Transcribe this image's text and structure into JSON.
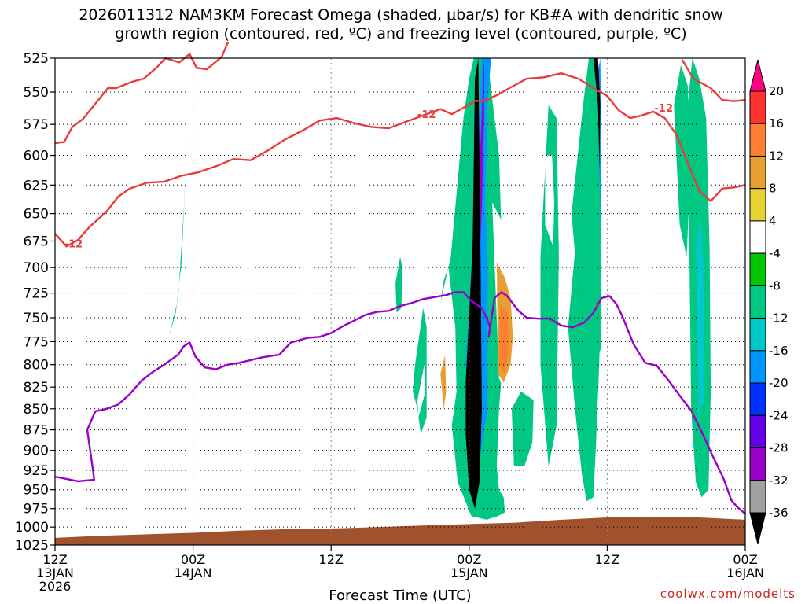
{
  "chart_data": {
    "type": "heatmap",
    "title_line1": "2026011312 NAM3KM Forecast Omega (shaded, μbar/s) for KB#A with dendritic snow",
    "title_line2": "growth region (contoured, red, ºC) and freezing level (contoured, purple, ºC)",
    "xlabel": "Forecast Time (UTC)",
    "credit": "coolwx.com/modelts",
    "y_axis": {
      "ylim": [
        1025,
        525
      ],
      "ticks": [
        "525",
        "550",
        "575",
        "600",
        "625",
        "650",
        "675",
        "700",
        "725",
        "750",
        "775",
        "800",
        "825",
        "850",
        "875",
        "900",
        "925",
        "950",
        "975",
        "1000",
        "1025"
      ],
      "grid": "dotted"
    },
    "x_axis": {
      "xlim": [
        "2026-01-13T12Z",
        "2026-01-16T00Z"
      ],
      "ticks": [
        {
          "x": 0,
          "l1": "12Z",
          "l2": "13JAN",
          "l3": "2026"
        },
        {
          "x": 12,
          "l1": "00Z",
          "l2": "14JAN",
          "l3": ""
        },
        {
          "x": 24,
          "l1": "12Z",
          "l2": "",
          "l3": ""
        },
        {
          "x": 36,
          "l1": "00Z",
          "l2": "15JAN",
          "l3": ""
        },
        {
          "x": 48,
          "l1": "12Z",
          "l2": "",
          "l3": ""
        },
        {
          "x": 60,
          "l1": "00Z",
          "l2": "16JAN",
          "l3": ""
        }
      ]
    },
    "colorbar": {
      "labels": [
        "20",
        "16",
        "12",
        "8",
        "4",
        "-4",
        "-8",
        "-12",
        "-16",
        "-20",
        "-24",
        "-28",
        "-32",
        "-36"
      ],
      "colors": [
        "#ff0080",
        "#ff3232",
        "#ff7f32",
        "#e6a032",
        "#e6d232",
        "#ffffff",
        "#00c800",
        "#00c882",
        "#00c8c8",
        "#0096ff",
        "#0032ff",
        "#6400e6",
        "#9600c8",
        "#a0a0a0",
        "#000000"
      ]
    },
    "contour_labels": [
      {
        "text": "-12",
        "x": 0.8,
        "p": 681
      },
      {
        "text": "-12",
        "x": 31.5,
        "p": 570
      },
      {
        "text": "-12",
        "x": 52.1,
        "p": 565
      }
    ],
    "series": [
      {
        "color": "#e83c3c",
        "x": [
          0,
          0.8,
          1.5,
          2.4,
          3.4,
          4.6,
          5.3,
          6.8,
          7.7,
          8.8,
          9.6,
          10.8,
          11.7,
          12.3,
          13.2,
          14.5,
          15,
          15.1
        ],
        "p": [
          590,
          589,
          577,
          571,
          560,
          547,
          547,
          542,
          540,
          532,
          525,
          528,
          522,
          532,
          533,
          524,
          514,
          514
        ]
      },
      {
        "color": "#e83c3c",
        "x": [
          0,
          1,
          2,
          3,
          4.5,
          5.5,
          6.5,
          8,
          9.5,
          11,
          12.5,
          14,
          15.5,
          17,
          18.5,
          20,
          21.5,
          23,
          24.5,
          26,
          27.5,
          29,
          30.5,
          32,
          33.5,
          34.5,
          35.5,
          36.5,
          37.5,
          38.5,
          39.5,
          41,
          42.5,
          44,
          45.5,
          47,
          48,
          49,
          50,
          51,
          52,
          53,
          54,
          55,
          56,
          57,
          58,
          59,
          60
        ],
        "p": [
          668,
          680,
          674,
          662,
          648,
          635,
          628,
          623,
          622,
          617,
          614,
          609,
          603,
          604,
          596,
          587,
          580,
          572,
          570,
          574,
          577,
          578,
          573,
          568,
          563,
          567,
          562,
          557,
          556,
          552,
          547,
          540,
          539,
          536,
          540,
          548,
          553,
          564,
          570,
          568,
          565,
          570,
          583,
          606,
          630,
          639,
          628,
          627,
          625
        ]
      },
      {
        "color": "#e83c3c",
        "x": [
          54.5,
          55.5,
          57,
          58,
          59,
          60
        ],
        "p": [
          526,
          540,
          547,
          556,
          557,
          556
        ]
      },
      {
        "color": "#9b00c8",
        "x": [
          0,
          2,
          3.4,
          3.3,
          2.8,
          3.5,
          4.5,
          5.5,
          6.5,
          7.5,
          8.5,
          9.5,
          10.7,
          11.2,
          11.7,
          12.2,
          13,
          14,
          15,
          16,
          17,
          18,
          19,
          19.5,
          20.5,
          22,
          23,
          24,
          25,
          26,
          27,
          28,
          29,
          30,
          31,
          32,
          33,
          34,
          34.8,
          35.5,
          36.2,
          37.1,
          37.6,
          37.8,
          37.7,
          38.2,
          38.8,
          39.3,
          40.3,
          41,
          42,
          43,
          44,
          45,
          46,
          46.8,
          47.5,
          48.2,
          48.8,
          49.3,
          50.3,
          51.3,
          52.3,
          53.3,
          54.2,
          55.3,
          56.2,
          57.1,
          58.1,
          58.8,
          59.3,
          60
        ],
        "p": [
          933,
          939,
          937,
          925,
          875,
          853,
          850,
          845,
          833,
          818,
          808,
          800,
          789,
          780,
          776,
          791,
          803,
          805,
          800,
          798,
          795,
          792,
          790,
          789,
          776,
          771,
          770,
          766,
          759,
          753,
          747,
          744,
          743,
          738,
          735,
          731,
          729,
          727,
          724,
          724,
          733,
          740,
          752,
          760,
          770,
          730,
          724,
          728,
          743,
          750,
          751,
          751,
          758,
          760,
          755,
          745,
          730,
          728,
          736,
          748,
          778,
          798,
          801,
          817,
          833,
          852,
          877,
          905,
          935,
          964,
          973,
          982
        ]
      }
    ],
    "omega_regions": [
      {
        "level": "-8",
        "x": [
          9.9,
          10.5,
          11,
          11.5,
          11.2,
          10.7,
          10.1
        ],
        "p": [
          770,
          745,
          695,
          582,
          645,
          730,
          760
        ]
      },
      {
        "level": "4",
        "x": [
          0.7,
          0.9,
          1.2,
          0.9
        ],
        "p": [
          540,
          525,
          525,
          545
        ]
      },
      {
        "level": "-8",
        "x": [
          33.5,
          34.4,
          35.5,
          36,
          36.4,
          36.9,
          37.6,
          37.8,
          38.2,
          38.6,
          38.9,
          39,
          38.9,
          38.6,
          38.4,
          38.6,
          39,
          39.1,
          38.5,
          37.5,
          36.2,
          35,
          34.5,
          34.9,
          34.8,
          34.2,
          33.8
        ],
        "p": [
          735,
          690,
          570,
          540,
          525,
          525,
          525,
          540,
          570,
          600,
          700,
          760,
          800,
          850,
          920,
          950,
          960,
          980,
          985,
          990,
          985,
          940,
          870,
          830,
          760,
          700,
          712
        ]
      },
      {
        "level": "-16",
        "x": [
          35.7,
          36.5,
          37.1,
          37.9,
          37.6,
          37.4,
          37.6,
          37.6,
          36.5,
          35.8,
          35.9
        ],
        "p": [
          800,
          640,
          525,
          525,
          560,
          640,
          700,
          850,
          950,
          900,
          850
        ]
      },
      {
        "level": "-28",
        "x": [
          36,
          36.6,
          37.3,
          37.3,
          37.1,
          36.9,
          37,
          36.3
        ],
        "p": [
          800,
          680,
          525,
          570,
          645,
          700,
          850,
          900
        ]
      },
      {
        "level": "-36",
        "x": [
          35.7,
          36.3,
          36.5,
          36.8,
          37,
          37.1,
          36.9,
          36.5,
          36,
          35.7
        ],
        "p": [
          820,
          680,
          540,
          525,
          700,
          850,
          940,
          975,
          950,
          880
        ]
      },
      {
        "level": "4",
        "x": [
          38,
          39,
          39.8,
          40.2,
          40.6,
          40.5,
          40.1,
          39.4,
          38.6
        ],
        "p": [
          640,
          660,
          660,
          700,
          750,
          800,
          830,
          840,
          815
        ]
      },
      {
        "level": "12",
        "x": [
          38.4,
          39.1,
          39.6,
          39.8,
          39.6,
          39,
          38.5
        ],
        "p": [
          695,
          710,
          730,
          770,
          800,
          820,
          810
        ]
      },
      {
        "level": "16",
        "x": [
          38.7,
          39.3,
          39.5,
          39.1,
          38.6
        ],
        "p": [
          735,
          745,
          780,
          810,
          800
        ]
      },
      {
        "level": "4",
        "x": [
          39.8,
          40.7,
          41.3,
          41,
          40.6,
          40.2
        ],
        "p": [
          650,
          650,
          680,
          700,
          690,
          660
        ]
      },
      {
        "level": "-8",
        "x": [
          39.7,
          40.5,
          41.6,
          41.5,
          40.8,
          39.9
        ],
        "p": [
          850,
          830,
          840,
          890,
          920,
          920
        ]
      },
      {
        "level": "4",
        "x": [
          41.5,
          42.4,
          42.8,
          42.6,
          41.8
        ],
        "p": [
          885,
          880,
          900,
          940,
          930
        ]
      },
      {
        "level": "-8",
        "x": [
          42.2,
          42.9,
          43.6,
          43.8,
          43.6,
          42.9,
          42.2
        ],
        "p": [
          690,
          560,
          570,
          690,
          870,
          920,
          800
        ]
      },
      {
        "level": "4",
        "x": [
          42.6,
          43.2,
          43.4,
          43.3,
          42.6
        ],
        "p": [
          600,
          600,
          640,
          680,
          660
        ]
      },
      {
        "level": "4",
        "x": [
          44.2,
          44.8,
          45.2,
          45.1,
          44.6,
          44.3
        ],
        "p": [
          870,
          860,
          880,
          910,
          930,
          900
        ]
      },
      {
        "level": "-8",
        "x": [
          44.6,
          45.5,
          46.4,
          46.9,
          47.2,
          47.5,
          47.3,
          47,
          46.8,
          46.2,
          45.8,
          45.2
        ],
        "p": [
          760,
          650,
          525,
          525,
          600,
          700,
          800,
          900,
          960,
          965,
          930,
          850
        ]
      },
      {
        "level": "-16",
        "x": [
          46.7,
          47.4,
          47.5,
          47.4,
          47.2,
          46.8
        ],
        "p": [
          560,
          525,
          600,
          700,
          780,
          700
        ]
      },
      {
        "level": "-28",
        "x": [
          46.8,
          47.2,
          47.3,
          47.3,
          46.9
        ],
        "p": [
          640,
          560,
          630,
          740,
          720
        ]
      },
      {
        "level": "-36",
        "x": [
          46.6,
          46.9,
          47.2,
          47.4,
          47.2,
          46.9,
          46.7
        ],
        "p": [
          540,
          525,
          525,
          560,
          700,
          720,
          680
        ]
      },
      {
        "level": "4",
        "x": [
          47.9,
          48.2,
          48.8,
          48.9,
          48.8
        ],
        "p": [
          780,
          820,
          820,
          780,
          690
        ]
      },
      {
        "level": "4",
        "x": [
          49.2,
          50,
          50.6,
          50.4,
          49.7
        ],
        "p": [
          690,
          590,
          640,
          740,
          760
        ]
      },
      {
        "level": "4",
        "x": [
          48.6,
          49.4,
          49.1,
          48.9
        ],
        "p": [
          570,
          545,
          560,
          600
        ]
      },
      {
        "level": "-8",
        "x": [
          55,
          55.4,
          56,
          56.6,
          56.9,
          57,
          56.8,
          56.2,
          55.7,
          55.3
        ],
        "p": [
          560,
          525,
          540,
          570,
          680,
          830,
          950,
          960,
          940,
          850
        ]
      },
      {
        "level": "-12",
        "x": [
          55.7,
          56.1,
          56.4,
          56.4,
          55.9
        ],
        "p": [
          680,
          650,
          700,
          840,
          860
        ]
      },
      {
        "level": "4",
        "x": [
          58.4,
          58.8,
          59.4,
          59.6,
          59.4,
          58.8
        ],
        "p": [
          765,
          760,
          780,
          840,
          875,
          870
        ]
      },
      {
        "level": "4",
        "x": [
          59.9,
          60,
          60,
          59.8
        ],
        "p": [
          525,
          525,
          980,
          860
        ]
      },
      {
        "level": "4",
        "x": [
          33.4,
          34,
          34.3,
          34.1,
          33.7,
          33.5
        ],
        "p": [
          800,
          770,
          800,
          850,
          870,
          840
        ]
      },
      {
        "level": "12",
        "x": [
          33.5,
          33.9,
          34,
          33.8
        ],
        "p": [
          810,
          790,
          830,
          850
        ]
      },
      {
        "level": "-8",
        "x": [
          31.3,
          32,
          32.3,
          32.3,
          31.8,
          31.5,
          31.1
        ],
        "p": [
          800,
          740,
          760,
          860,
          880,
          850,
          830
        ]
      },
      {
        "level": "4",
        "x": [
          31.5,
          32.1,
          32.2,
          31.6
        ],
        "p": [
          840,
          800,
          830,
          860
        ]
      },
      {
        "level": "-8",
        "x": [
          29.6,
          30,
          30.2,
          30.1,
          29.7
        ],
        "p": [
          715,
          690,
          700,
          740,
          745
        ]
      },
      {
        "level": "-8",
        "x": [
          44.9,
          45.9,
          46.4,
          46.8,
          47.2,
          47.4,
          47.5,
          46.8,
          46.2,
          45.6,
          45.3
        ],
        "p": [
          650,
          560,
          525,
          525,
          560,
          650,
          780,
          810,
          775,
          710,
          700
        ]
      },
      {
        "level": "4",
        "x": [
          41.6,
          42.1,
          42.4,
          42.1,
          41.7
        ],
        "p": [
          545,
          530,
          545,
          580,
          560
        ]
      },
      {
        "level": "-8",
        "x": [
          53.8,
          54.4,
          55,
          55.2,
          54.9,
          54.3
        ],
        "p": [
          560,
          530,
          545,
          620,
          690,
          660
        ]
      }
    ],
    "surface": {
      "color": "#a0522d",
      "x": [
        0,
        4,
        8,
        12,
        16,
        20,
        24,
        28,
        32,
        36,
        40,
        44,
        48,
        52,
        56,
        60
      ],
      "p": [
        1015,
        1012,
        1010,
        1008,
        1005,
        1003,
        1002,
        1000,
        998,
        996,
        994,
        990,
        987,
        987,
        987,
        990
      ]
    }
  }
}
